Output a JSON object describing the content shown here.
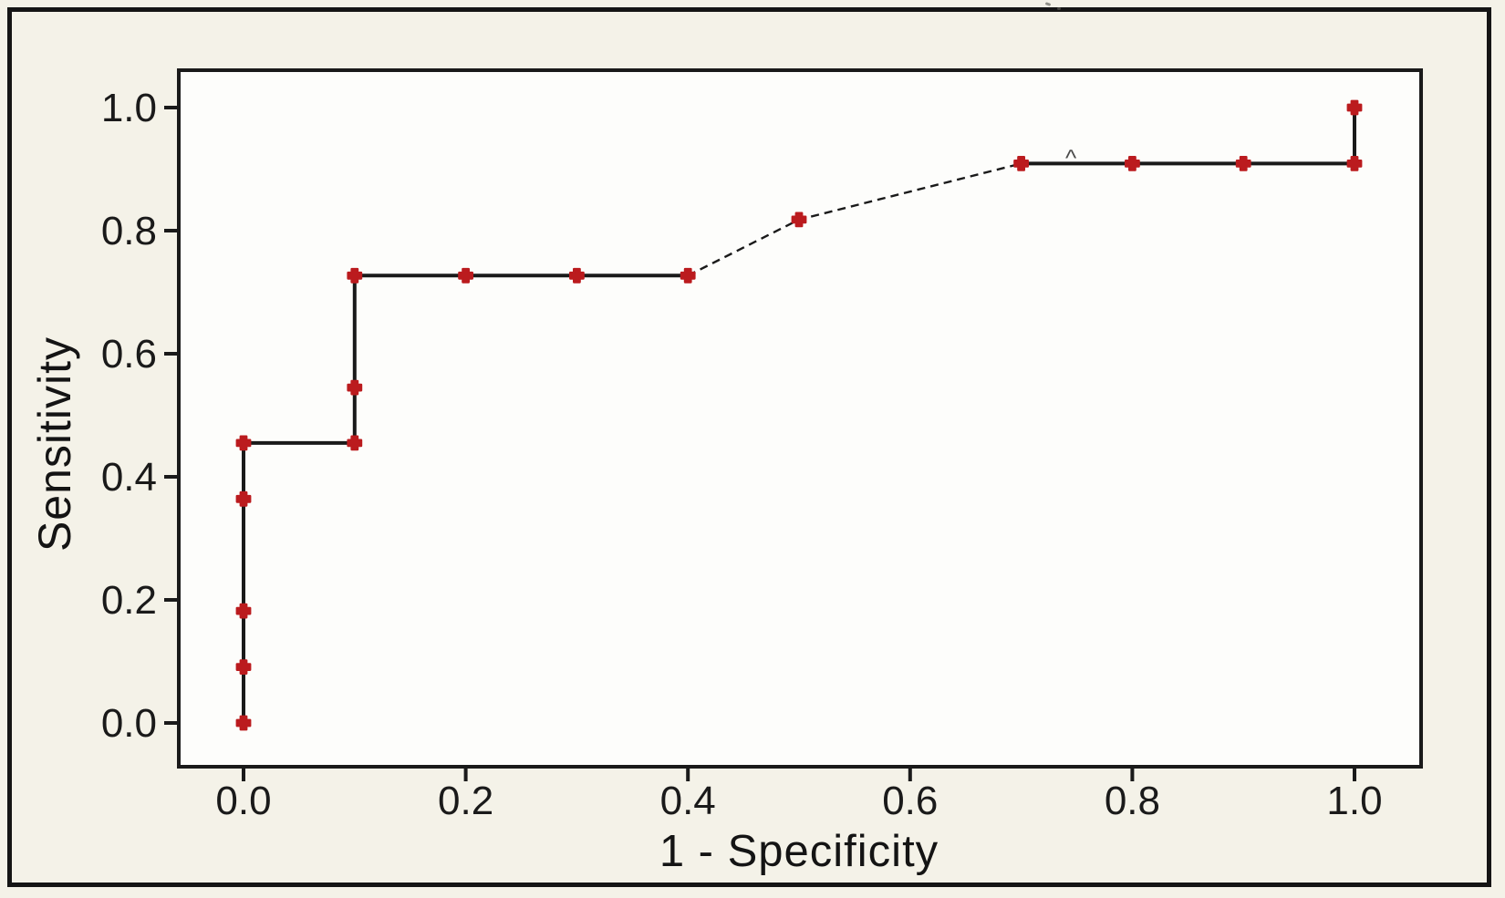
{
  "figure": {
    "background_color": "#f4f2e8",
    "plot_background_color": "#fdfdfb",
    "ink_color": "#1a1a1a",
    "marker_color": "#bb1b1e"
  },
  "chart_data": {
    "type": "line",
    "variant": "roc-step-curve",
    "title": "",
    "xlabel": "1 - Specificity",
    "ylabel": "Sensitivity",
    "xlim": [
      -0.06,
      1.06
    ],
    "ylim": [
      -0.07,
      1.08
    ],
    "grid": false,
    "legend": "none",
    "xticks": {
      "values": [
        0.0,
        0.2,
        0.4,
        0.6,
        0.8,
        1.0
      ],
      "labels": [
        "0.0",
        "0.2",
        "0.4",
        "0.6",
        "0.8",
        "1.0"
      ]
    },
    "yticks": {
      "values": [
        0.0,
        0.2,
        0.4,
        0.6,
        0.8,
        1.0
      ],
      "labels": [
        "0.0",
        "0.2",
        "0.4",
        "0.6",
        "0.8",
        "1.0"
      ]
    },
    "series": [
      {
        "name": "ROC curve",
        "marker": "red-cross",
        "line_color": "#1a1a1a",
        "marker_color": "#bb1b1e",
        "points": [
          [
            0.0,
            0.0
          ],
          [
            0.0,
            0.091
          ],
          [
            0.0,
            0.182
          ],
          [
            0.0,
            0.364
          ],
          [
            0.0,
            0.455
          ],
          [
            0.1,
            0.455
          ],
          [
            0.1,
            0.545
          ],
          [
            0.1,
            0.727
          ],
          [
            0.2,
            0.727
          ],
          [
            0.3,
            0.727
          ],
          [
            0.4,
            0.727
          ],
          [
            0.5,
            0.818
          ],
          [
            0.7,
            0.909
          ],
          [
            0.8,
            0.909
          ],
          [
            0.9,
            0.909
          ],
          [
            1.0,
            0.909
          ],
          [
            1.0,
            1.0
          ]
        ]
      }
    ]
  }
}
